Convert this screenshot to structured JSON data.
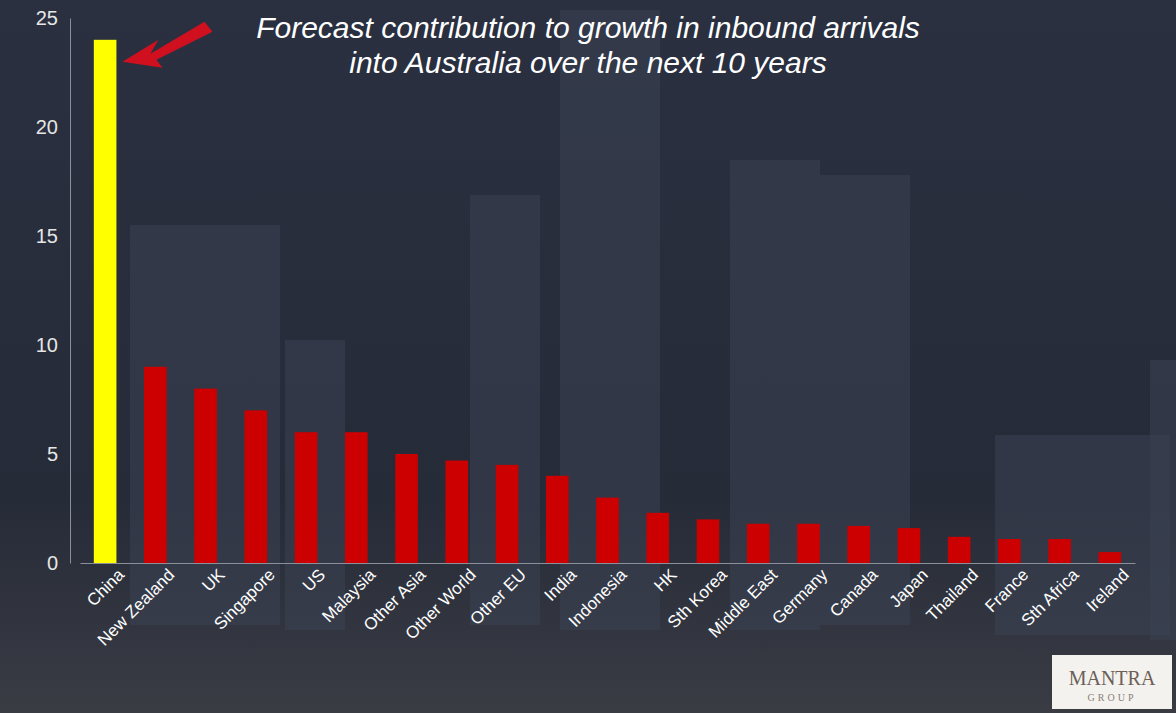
{
  "chart_data": {
    "type": "bar",
    "title": "Forecast contribution to growth in inbound arrivals into Australia over the next 10 years",
    "categories": [
      "China",
      "New Zealand",
      "UK",
      "Singapore",
      "US",
      "Malaysia",
      "Other Asia",
      "Other World",
      "Other EU",
      "India",
      "Indonesia",
      "HK",
      "Sth Korea",
      "Middle East",
      "Germany",
      "Canada",
      "Japan",
      "Thailand",
      "France",
      "Sth Africa",
      "Ireland"
    ],
    "values": [
      24,
      9,
      8,
      7,
      6,
      6,
      5,
      4.7,
      4.5,
      4,
      3,
      2.3,
      2,
      1.8,
      1.8,
      1.7,
      1.6,
      1.2,
      1.1,
      1.1,
      0.5
    ],
    "colors": [
      "#ffff00",
      "#cc0000",
      "#cc0000",
      "#cc0000",
      "#cc0000",
      "#cc0000",
      "#cc0000",
      "#cc0000",
      "#cc0000",
      "#cc0000",
      "#cc0000",
      "#cc0000",
      "#cc0000",
      "#cc0000",
      "#cc0000",
      "#cc0000",
      "#cc0000",
      "#cc0000",
      "#cc0000",
      "#cc0000",
      "#cc0000"
    ],
    "ylim": [
      0,
      25
    ],
    "yticks": [
      0,
      5,
      10,
      15,
      20,
      25
    ],
    "grid": false,
    "annotations": [
      "MANTRA",
      "GROUP"
    ]
  }
}
